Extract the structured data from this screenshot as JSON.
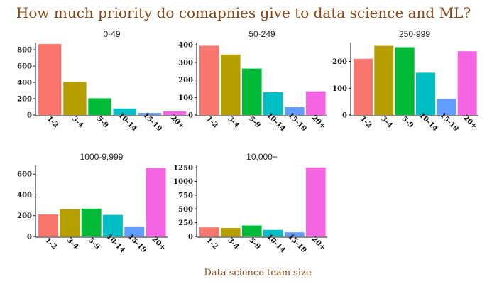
{
  "chart_data": {
    "type": "bar",
    "title": "How much priority do comapnies give to data science and ML?",
    "xlabel": "Data science team size",
    "categories": [
      "1-2",
      "3-4",
      "5-9",
      "10-14",
      "15-19",
      "20+"
    ],
    "colors": [
      "#F8766D",
      "#B79F00",
      "#00BA38",
      "#00BFC4",
      "#619CFF",
      "#F564E3"
    ],
    "panels": [
      {
        "name": "0-49",
        "values": [
          870,
          405,
          205,
          80,
          25,
          45
        ],
        "ylim": [
          0,
          870
        ],
        "yticks": [
          0,
          200,
          400,
          600,
          800
        ]
      },
      {
        "name": "50-249",
        "values": [
          395,
          345,
          265,
          130,
          45,
          135
        ],
        "ylim": [
          0,
          405
        ],
        "yticks": [
          0,
          100,
          200,
          300,
          400
        ]
      },
      {
        "name": "250-999",
        "values": [
          210,
          258,
          253,
          158,
          60,
          238
        ],
        "ylim": [
          0,
          265
        ],
        "yticks": [
          0,
          100,
          200
        ]
      },
      {
        "name": "1000-9,999",
        "values": [
          212,
          262,
          268,
          208,
          90,
          660
        ],
        "ylim": [
          0,
          670
        ],
        "yticks": [
          0,
          200,
          400,
          600
        ]
      },
      {
        "name": "10,000+",
        "values": [
          165,
          155,
          200,
          120,
          75,
          1255
        ],
        "ylim": [
          0,
          1265
        ],
        "yticks": [
          0,
          250,
          500,
          750,
          1000,
          1250
        ]
      }
    ]
  }
}
